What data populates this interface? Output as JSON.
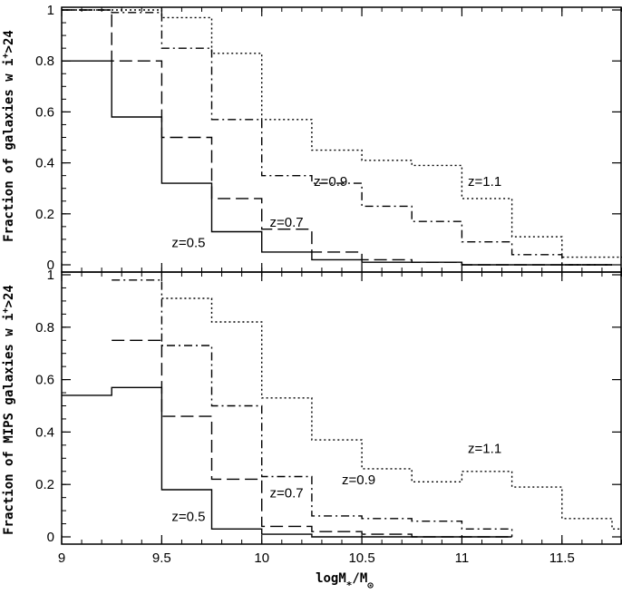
{
  "chart_data": [
    {
      "type": "line",
      "drawstyle": "steps",
      "panel": "top",
      "ylabel_text": "Fraction of galaxies w i",
      "ylabel_sup": "+",
      "ylabel_tail": ">24",
      "xlim": [
        9,
        11.8
      ],
      "ylim": [
        0,
        1
      ],
      "yticks": [
        0,
        0.2,
        0.4,
        0.6,
        0.8,
        1
      ],
      "ytick_labels": [
        "0",
        "0.2",
        "0.4",
        "0.6",
        "0.8",
        "1"
      ],
      "grid": false,
      "series": [
        {
          "name": "z=0.5",
          "style": "solid",
          "edges": [
            9.0,
            9.25,
            9.5,
            9.75,
            10.0,
            10.25,
            10.5,
            10.75,
            11.0,
            11.25,
            11.5,
            11.75
          ],
          "values": [
            0.8,
            0.58,
            0.32,
            0.13,
            0.05,
            0.02,
            0.01,
            0.01,
            0.0,
            0.0,
            0.0
          ]
        },
        {
          "name": "z=0.7",
          "style": "dashed",
          "edges": [
            9.0,
            9.25,
            9.5,
            9.75,
            10.0,
            10.25,
            10.5,
            10.75,
            11.0,
            11.25,
            11.5,
            11.75
          ],
          "values": [
            1.0,
            0.8,
            0.5,
            0.26,
            0.14,
            0.05,
            0.02,
            0.01,
            0.0,
            0.0,
            0.0
          ]
        },
        {
          "name": "z=0.9",
          "style": "dashdot",
          "edges": [
            9.0,
            9.25,
            9.5,
            9.75,
            10.0,
            10.25,
            10.5,
            10.75,
            11.0,
            11.25,
            11.5,
            11.75
          ],
          "values": [
            1.0,
            0.99,
            0.85,
            0.57,
            0.35,
            0.32,
            0.23,
            0.17,
            0.09,
            0.04,
            0.0
          ]
        },
        {
          "name": "z=1.1",
          "style": "dotted",
          "edges": [
            9.0,
            9.25,
            9.5,
            9.75,
            10.0,
            10.25,
            10.5,
            10.75,
            11.0,
            11.25,
            11.5,
            11.75,
            11.8
          ],
          "values": [
            1.0,
            1.0,
            0.97,
            0.83,
            0.57,
            0.45,
            0.41,
            0.39,
            0.26,
            0.11,
            0.03,
            0.03
          ]
        }
      ],
      "annotations": [
        {
          "text": "z=0.5",
          "x": 9.55,
          "y": 0.07
        },
        {
          "text": "z=0.7",
          "x": 10.04,
          "y": 0.15
        },
        {
          "text": "z=0.9",
          "x": 10.26,
          "y": 0.31
        },
        {
          "text": "z=1.1",
          "x": 11.03,
          "y": 0.31
        }
      ]
    },
    {
      "type": "line",
      "drawstyle": "steps",
      "panel": "bottom",
      "ylabel_text": "Fraction of MIPS galaxies w i",
      "ylabel_sup": "+",
      "ylabel_tail": ">24",
      "xlabel_main": "logM",
      "xlabel_sub": "*",
      "xlabel_mid": "/M",
      "xlabel_sub2": "⊙",
      "xlim": [
        9,
        11.8
      ],
      "ylim": [
        0,
        1
      ],
      "xticks": [
        9,
        9.5,
        10,
        10.5,
        11,
        11.5
      ],
      "xtick_labels": [
        "9",
        "9.5",
        "10",
        "10.5",
        "11",
        "11.5"
      ],
      "yticks": [
        0,
        0.2,
        0.4,
        0.6,
        0.8,
        1
      ],
      "ytick_labels": [
        "0",
        "0.2",
        "0.4",
        "0.6",
        "0.8",
        "1"
      ],
      "grid": false,
      "series": [
        {
          "name": "z=0.5",
          "style": "solid",
          "edges": [
            9.0,
            9.25,
            9.5,
            9.75,
            10.0,
            10.25,
            10.5,
            10.75,
            11.0,
            11.25
          ],
          "values": [
            0.54,
            0.57,
            0.18,
            0.03,
            0.01,
            0.0,
            0.0,
            0.0,
            0.0
          ]
        },
        {
          "name": "z=0.7",
          "style": "dashed",
          "edges": [
            9.25,
            9.5,
            9.75,
            10.0,
            10.25,
            10.5,
            10.75,
            11.0,
            11.25
          ],
          "values": [
            0.75,
            0.46,
            0.22,
            0.04,
            0.02,
            0.01,
            0.0,
            0.0
          ]
        },
        {
          "name": "z=0.9",
          "style": "dashdot",
          "edges": [
            9.25,
            9.5,
            9.75,
            10.0,
            10.25,
            10.5,
            10.75,
            11.0,
            11.25
          ],
          "values": [
            0.98,
            0.73,
            0.5,
            0.23,
            0.08,
            0.07,
            0.06,
            0.03,
            0.0
          ]
        },
        {
          "name": "z=1.1",
          "style": "dotted",
          "edges": [
            9.5,
            9.75,
            10.0,
            10.25,
            10.5,
            10.75,
            11.0,
            11.25,
            11.5,
            11.75,
            11.8
          ],
          "values": [
            0.91,
            0.82,
            0.53,
            0.37,
            0.26,
            0.21,
            0.25,
            0.19,
            0.07,
            0.03
          ]
        }
      ],
      "annotations": [
        {
          "text": "z=0.5",
          "x": 9.55,
          "y": 0.06
        },
        {
          "text": "z=0.7",
          "x": 10.04,
          "y": 0.15
        },
        {
          "text": "z=0.9",
          "x": 10.4,
          "y": 0.2
        },
        {
          "text": "z=1.1",
          "x": 11.03,
          "y": 0.32
        }
      ]
    }
  ]
}
